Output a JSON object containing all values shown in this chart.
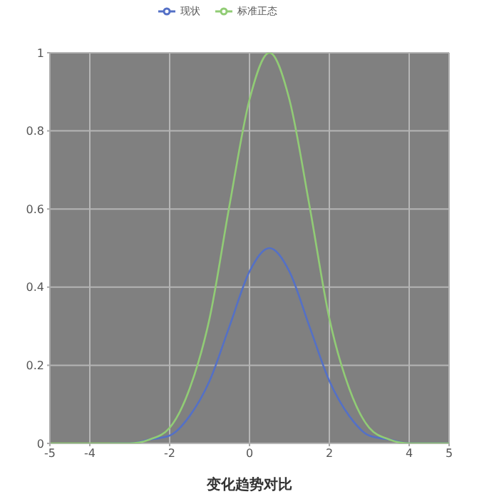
{
  "chart_data": {
    "type": "line",
    "title": "变化趋势对比",
    "x": [
      -5,
      -4.5,
      -4,
      -3.5,
      -3,
      -2.5,
      -2,
      -1.5,
      -1,
      -0.5,
      0,
      0.5,
      1,
      1.5,
      2,
      2.5,
      3,
      3.5,
      4,
      4.5,
      5
    ],
    "series": [
      {
        "name": "现状",
        "color": "#5470c6",
        "values": [
          null,
          null,
          null,
          0,
          0,
          0.01,
          0.02,
          0.07,
          0.16,
          0.3,
          0.44,
          0.5,
          0.44,
          0.3,
          0.16,
          0.07,
          0.02,
          0.01,
          0,
          0,
          0
        ]
      },
      {
        "name": "标准正态",
        "color": "#91cc75",
        "values": [
          0,
          0,
          0,
          0,
          0,
          0.01,
          0.04,
          0.14,
          0.32,
          0.61,
          0.88,
          1,
          0.88,
          0.61,
          0.32,
          0.14,
          0.04,
          0.01,
          0,
          0,
          0
        ]
      }
    ],
    "xlim": [
      -5,
      5
    ],
    "xticks": [
      -5,
      -4,
      -2,
      0,
      2,
      4,
      5
    ],
    "ylim": [
      0,
      1
    ],
    "yticks": [
      0,
      0.2,
      0.4,
      0.6,
      0.8,
      1
    ],
    "grid": true,
    "legend": "top",
    "marker": "none",
    "line_style": "solid"
  }
}
